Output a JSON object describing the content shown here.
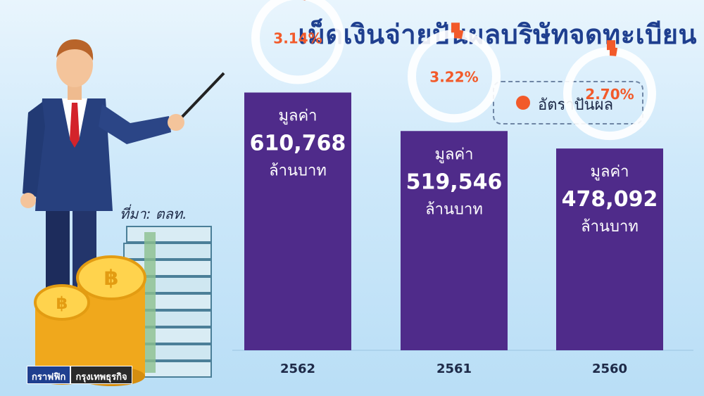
{
  "title": "เม็ดเงินจ่ายปันผลบริษัทจดทะเบียน",
  "source": "ที่มา: ตลท.",
  "legend": {
    "label": "อัตราปันผล",
    "color": "#f25a2a"
  },
  "credit": {
    "part1": "กราฟฟิก",
    "part2": "กรุงเทพธุรกิจ"
  },
  "colors": {
    "bar": "#4f2b8a",
    "ring": "#ffffff",
    "percent_text": "#f25a2a",
    "bar_text": "#ffffff",
    "axis": "#1e2a48"
  },
  "chart_data": {
    "type": "bar",
    "categories": [
      "2562",
      "2561",
      "2560"
    ],
    "values": [
      610768,
      519546,
      478092
    ],
    "value_prefix": "มูลค่า",
    "value_unit": "ล้านบาท",
    "value_labels": [
      "610,768",
      "519,546",
      "478,092"
    ],
    "dividend_yield": [
      3.14,
      3.22,
      2.7
    ],
    "dividend_yield_labels": [
      "3.14%",
      "3.22%",
      "2.70%"
    ],
    "ylim": [
      0,
      700000
    ],
    "grid": false,
    "legend_position": "top-right"
  }
}
